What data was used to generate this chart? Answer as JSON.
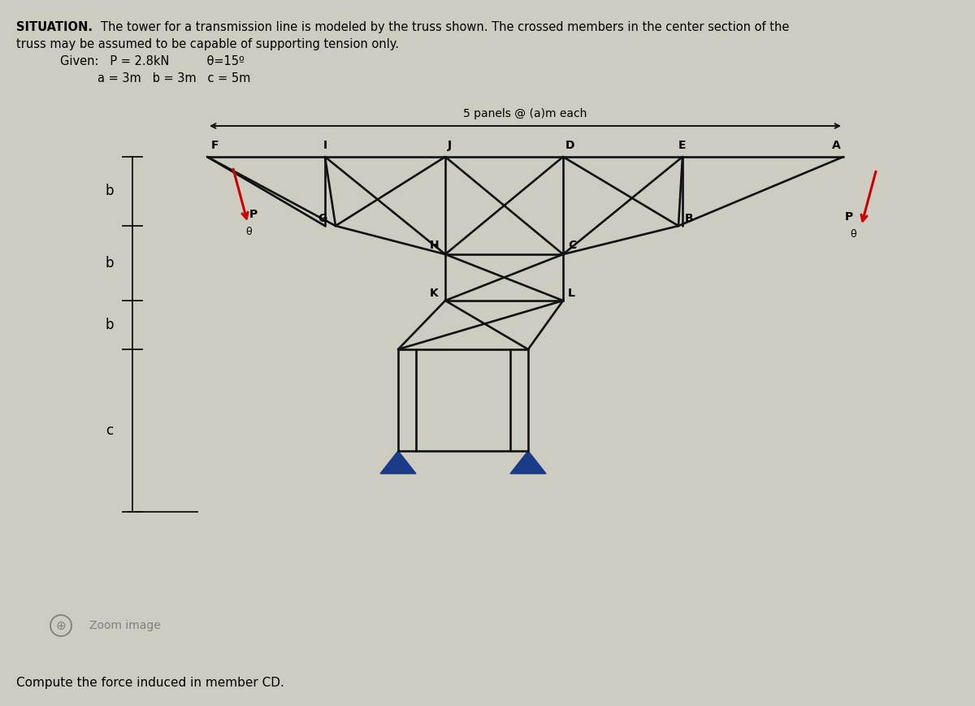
{
  "bg_color": "#ccccc0",
  "truss_color": "#111111",
  "red_color": "#cc0000",
  "blue_color": "#1a3a8a",
  "panel_label": "5 panels @ (a)m each",
  "bottom_text": "Compute the force induced in member CD.",
  "zoom_text": "Zoom image"
}
